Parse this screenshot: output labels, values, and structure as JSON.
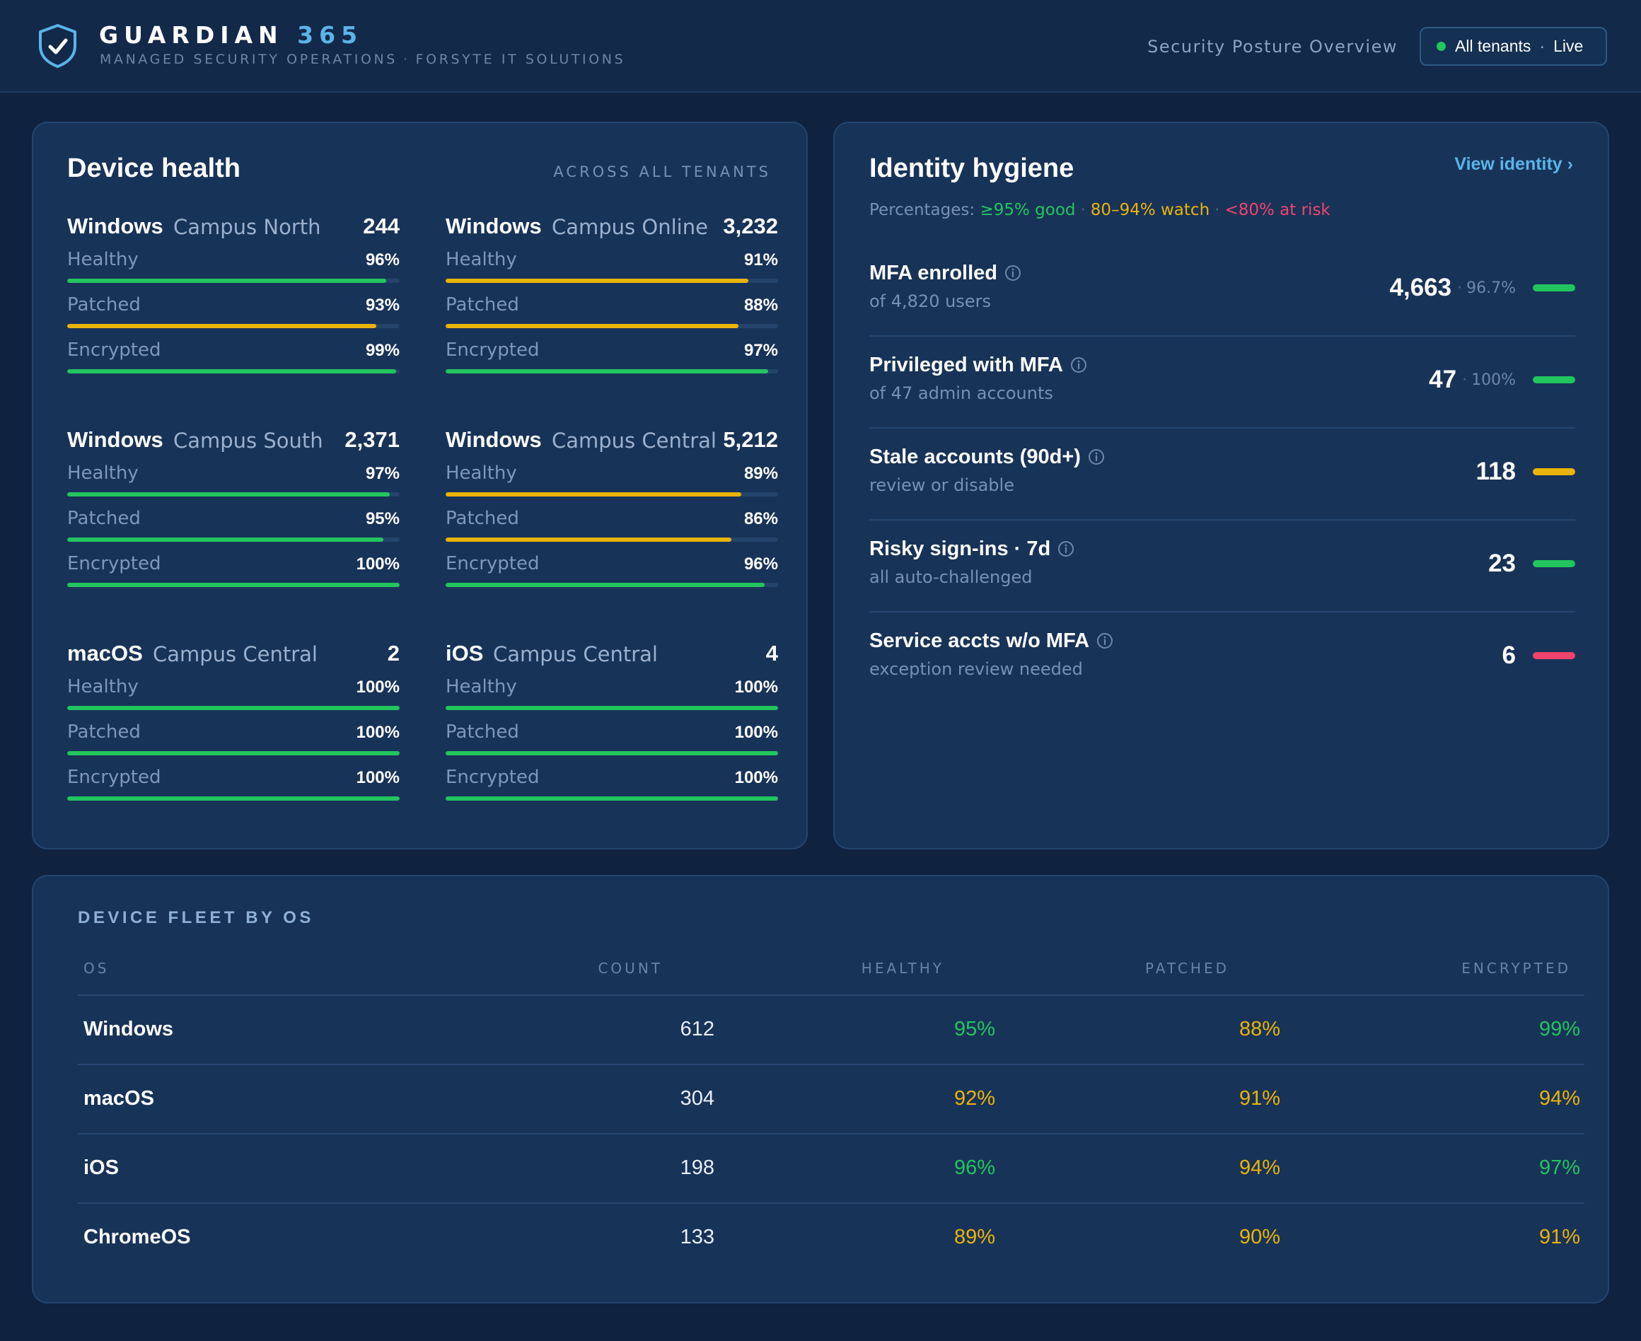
{
  "header": {
    "brand_main": "GUARDIAN",
    "brand_accent": "365",
    "subtitle_left": "MANAGED SECURITY OPERATIONS",
    "subtitle_dot": "·",
    "subtitle_right": "FORSYTE IT SOLUTIONS",
    "page_title": "Security Posture Overview",
    "tenant_label": "All tenants",
    "tenant_sep": "·",
    "tenant_status": "Live"
  },
  "colors": {
    "good": "#22c55e",
    "watch": "#eab308",
    "risk": "#f0446c",
    "accent": "#5ab4e8"
  },
  "device_health": {
    "title": "Device health",
    "scope": "ACROSS ALL TENANTS",
    "groups": [
      {
        "os": "Windows",
        "location": "Campus North",
        "count": "244",
        "metrics": [
          {
            "label": "Healthy",
            "value": "96%",
            "pct": 96,
            "status": "good"
          },
          {
            "label": "Patched",
            "value": "93%",
            "pct": 93,
            "status": "watch"
          },
          {
            "label": "Encrypted",
            "value": "99%",
            "pct": 99,
            "status": "good"
          }
        ]
      },
      {
        "os": "Windows",
        "location": "Campus Online",
        "count": "3,232",
        "metrics": [
          {
            "label": "Healthy",
            "value": "91%",
            "pct": 91,
            "status": "watch"
          },
          {
            "label": "Patched",
            "value": "88%",
            "pct": 88,
            "status": "watch"
          },
          {
            "label": "Encrypted",
            "value": "97%",
            "pct": 97,
            "status": "good"
          }
        ]
      },
      {
        "os": "Windows",
        "location": "Campus South",
        "count": "2,371",
        "metrics": [
          {
            "label": "Healthy",
            "value": "97%",
            "pct": 97,
            "status": "good"
          },
          {
            "label": "Patched",
            "value": "95%",
            "pct": 95,
            "status": "good"
          },
          {
            "label": "Encrypted",
            "value": "100%",
            "pct": 100,
            "status": "good"
          }
        ]
      },
      {
        "os": "Windows",
        "location": "Campus Central",
        "count": "5,212",
        "metrics": [
          {
            "label": "Healthy",
            "value": "89%",
            "pct": 89,
            "status": "watch"
          },
          {
            "label": "Patched",
            "value": "86%",
            "pct": 86,
            "status": "watch"
          },
          {
            "label": "Encrypted",
            "value": "96%",
            "pct": 96,
            "status": "good"
          }
        ]
      },
      {
        "os": "macOS",
        "location": "Campus Central",
        "count": "2",
        "metrics": [
          {
            "label": "Healthy",
            "value": "100%",
            "pct": 100,
            "status": "good"
          },
          {
            "label": "Patched",
            "value": "100%",
            "pct": 100,
            "status": "good"
          },
          {
            "label": "Encrypted",
            "value": "100%",
            "pct": 100,
            "status": "good"
          }
        ]
      },
      {
        "os": "iOS",
        "location": "Campus Central",
        "count": "4",
        "metrics": [
          {
            "label": "Healthy",
            "value": "100%",
            "pct": 100,
            "status": "good"
          },
          {
            "label": "Patched",
            "value": "100%",
            "pct": 100,
            "status": "good"
          },
          {
            "label": "Encrypted",
            "value": "100%",
            "pct": 100,
            "status": "good"
          }
        ]
      }
    ]
  },
  "identity": {
    "title": "Identity hygiene",
    "view_link": "View identity ›",
    "legend": {
      "prefix": "Percentages:",
      "good": "≥95% good",
      "watch": "80–94% watch",
      "risk": "<80% at risk",
      "sep": "·"
    },
    "rows": [
      {
        "label": "MFA enrolled",
        "sub": "of 4,820 users",
        "value": "4,663",
        "pct": "96.7%",
        "status": "good"
      },
      {
        "label": "Privileged with MFA",
        "sub": "of 47 admin accounts",
        "value": "47",
        "pct": "100%",
        "status": "good"
      },
      {
        "label": "Stale accounts (90d+)",
        "sub": "review or disable",
        "value": "118",
        "pct": "",
        "status": "watch"
      },
      {
        "label": "Risky sign-ins · 7d",
        "sub": "all auto-challenged",
        "value": "23",
        "pct": "",
        "status": "good"
      },
      {
        "label": "Service accts w/o MFA",
        "sub": "exception review needed",
        "value": "6",
        "pct": "",
        "status": "risk"
      }
    ]
  },
  "fleet": {
    "title": "DEVICE FLEET BY OS",
    "columns": [
      "OS",
      "COUNT",
      "HEALTHY",
      "PATCHED",
      "ENCRYPTED"
    ],
    "rows": [
      {
        "os": "Windows",
        "count": "612",
        "healthy": "95%",
        "healthy_status": "good",
        "patched": "88%",
        "patched_status": "watch",
        "encrypted": "99%",
        "encrypted_status": "good"
      },
      {
        "os": "macOS",
        "count": "304",
        "healthy": "92%",
        "healthy_status": "watch",
        "patched": "91%",
        "patched_status": "watch",
        "encrypted": "94%",
        "encrypted_status": "watch"
      },
      {
        "os": "iOS",
        "count": "198",
        "healthy": "96%",
        "healthy_status": "good",
        "patched": "94%",
        "patched_status": "watch",
        "encrypted": "97%",
        "encrypted_status": "good"
      },
      {
        "os": "ChromeOS",
        "count": "133",
        "healthy": "89%",
        "healthy_status": "watch",
        "patched": "90%",
        "patched_status": "watch",
        "encrypted": "91%",
        "encrypted_status": "watch"
      }
    ]
  }
}
